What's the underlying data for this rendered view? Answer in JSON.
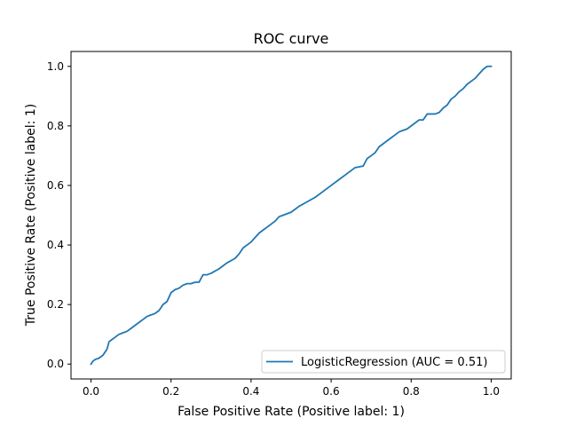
{
  "chart_data": {
    "type": "line",
    "title": "ROC curve",
    "xlabel": "False Positive Rate (Positive label: 1)",
    "ylabel": "True Positive Rate (Positive label: 1)",
    "xlim": [
      -0.05,
      1.05
    ],
    "ylim": [
      -0.05,
      1.05
    ],
    "xticks": [
      "0.0",
      "0.2",
      "0.4",
      "0.6",
      "0.8",
      "1.0"
    ],
    "yticks": [
      "0.0",
      "0.2",
      "0.4",
      "0.6",
      "0.8",
      "1.0"
    ],
    "grid": false,
    "legend_position": "lower-right",
    "series": [
      {
        "name": "LogisticRegression (AUC = 0.51)",
        "color": "#1f77b4",
        "x": [
          0.0,
          0.005,
          0.01,
          0.02,
          0.03,
          0.035,
          0.04,
          0.045,
          0.05,
          0.06,
          0.07,
          0.08,
          0.09,
          0.1,
          0.11,
          0.12,
          0.13,
          0.14,
          0.15,
          0.16,
          0.17,
          0.18,
          0.19,
          0.2,
          0.21,
          0.22,
          0.23,
          0.24,
          0.25,
          0.26,
          0.27,
          0.28,
          0.29,
          0.3,
          0.32,
          0.34,
          0.36,
          0.37,
          0.38,
          0.39,
          0.4,
          0.41,
          0.42,
          0.43,
          0.44,
          0.45,
          0.46,
          0.47,
          0.48,
          0.5,
          0.52,
          0.54,
          0.56,
          0.58,
          0.6,
          0.62,
          0.64,
          0.66,
          0.68,
          0.69,
          0.7,
          0.71,
          0.72,
          0.73,
          0.74,
          0.75,
          0.76,
          0.77,
          0.78,
          0.79,
          0.8,
          0.81,
          0.82,
          0.83,
          0.84,
          0.85,
          0.86,
          0.87,
          0.88,
          0.89,
          0.9,
          0.91,
          0.92,
          0.93,
          0.94,
          0.95,
          0.96,
          0.97,
          0.98,
          0.99,
          1.0
        ],
        "y": [
          0.0,
          0.01,
          0.015,
          0.02,
          0.03,
          0.04,
          0.05,
          0.075,
          0.08,
          0.09,
          0.1,
          0.105,
          0.11,
          0.12,
          0.13,
          0.14,
          0.15,
          0.16,
          0.165,
          0.17,
          0.18,
          0.2,
          0.21,
          0.24,
          0.25,
          0.255,
          0.265,
          0.27,
          0.27,
          0.275,
          0.275,
          0.3,
          0.3,
          0.305,
          0.32,
          0.34,
          0.355,
          0.37,
          0.39,
          0.4,
          0.41,
          0.425,
          0.44,
          0.45,
          0.46,
          0.47,
          0.48,
          0.495,
          0.5,
          0.51,
          0.53,
          0.545,
          0.56,
          0.58,
          0.6,
          0.62,
          0.64,
          0.66,
          0.665,
          0.69,
          0.7,
          0.71,
          0.73,
          0.74,
          0.75,
          0.76,
          0.77,
          0.78,
          0.785,
          0.79,
          0.8,
          0.81,
          0.82,
          0.82,
          0.84,
          0.84,
          0.84,
          0.845,
          0.86,
          0.87,
          0.89,
          0.9,
          0.915,
          0.925,
          0.94,
          0.95,
          0.96,
          0.975,
          0.99,
          1.0,
          1.0
        ]
      }
    ]
  }
}
